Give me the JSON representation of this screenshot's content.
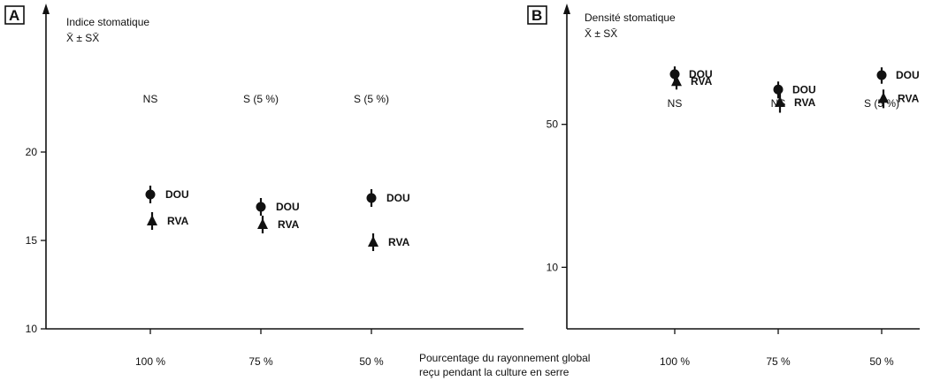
{
  "xlabel_lines": [
    "Pourcentage du rayonnement global",
    "reçu pendant la culture en serre"
  ],
  "chart_data": [
    {
      "type": "scatter",
      "panel": "A",
      "ylabel_line1": "Indice stomatique",
      "ylabel_line2": "X̄ ± SX̄",
      "categories": [
        "100 %",
        "75 %",
        "50 %"
      ],
      "significance": [
        "NS",
        "S (5 %)",
        "S (5 %)"
      ],
      "yticks": [
        10,
        15,
        20
      ],
      "ytick_labels": [
        "10",
        "15",
        "20"
      ],
      "ylim": [
        10,
        28
      ],
      "series": [
        {
          "name": "DOU",
          "marker": "circle",
          "values": [
            17.6,
            16.9,
            17.4
          ],
          "errors": [
            0.5,
            0.5,
            0.5
          ]
        },
        {
          "name": "RVA",
          "marker": "triangle",
          "values": [
            16.1,
            15.9,
            14.9
          ],
          "errors": [
            0.5,
            0.5,
            0.5
          ]
        }
      ]
    },
    {
      "type": "scatter",
      "panel": "B",
      "ylabel_line1": "Densité stomatique",
      "ylabel_line2": "X̄ ± SX̄",
      "categories": [
        "100 %",
        "75 %",
        "50 %"
      ],
      "significance": [
        "NS",
        "NS",
        "S (5 %)"
      ],
      "yticks": [
        10,
        50
      ],
      "ytick_labels": [
        "10",
        "50"
      ],
      "ylim": [
        5,
        180
      ],
      "yscale": "log",
      "series": [
        {
          "name": "DOU",
          "marker": "circle",
          "values": [
            88,
            74,
            87
          ],
          "errors": [
            8,
            7,
            8
          ]
        },
        {
          "name": "RVA",
          "marker": "triangle",
          "values": [
            81,
            64,
            67
          ],
          "errors": [
            7,
            7,
            7
          ]
        }
      ]
    }
  ]
}
